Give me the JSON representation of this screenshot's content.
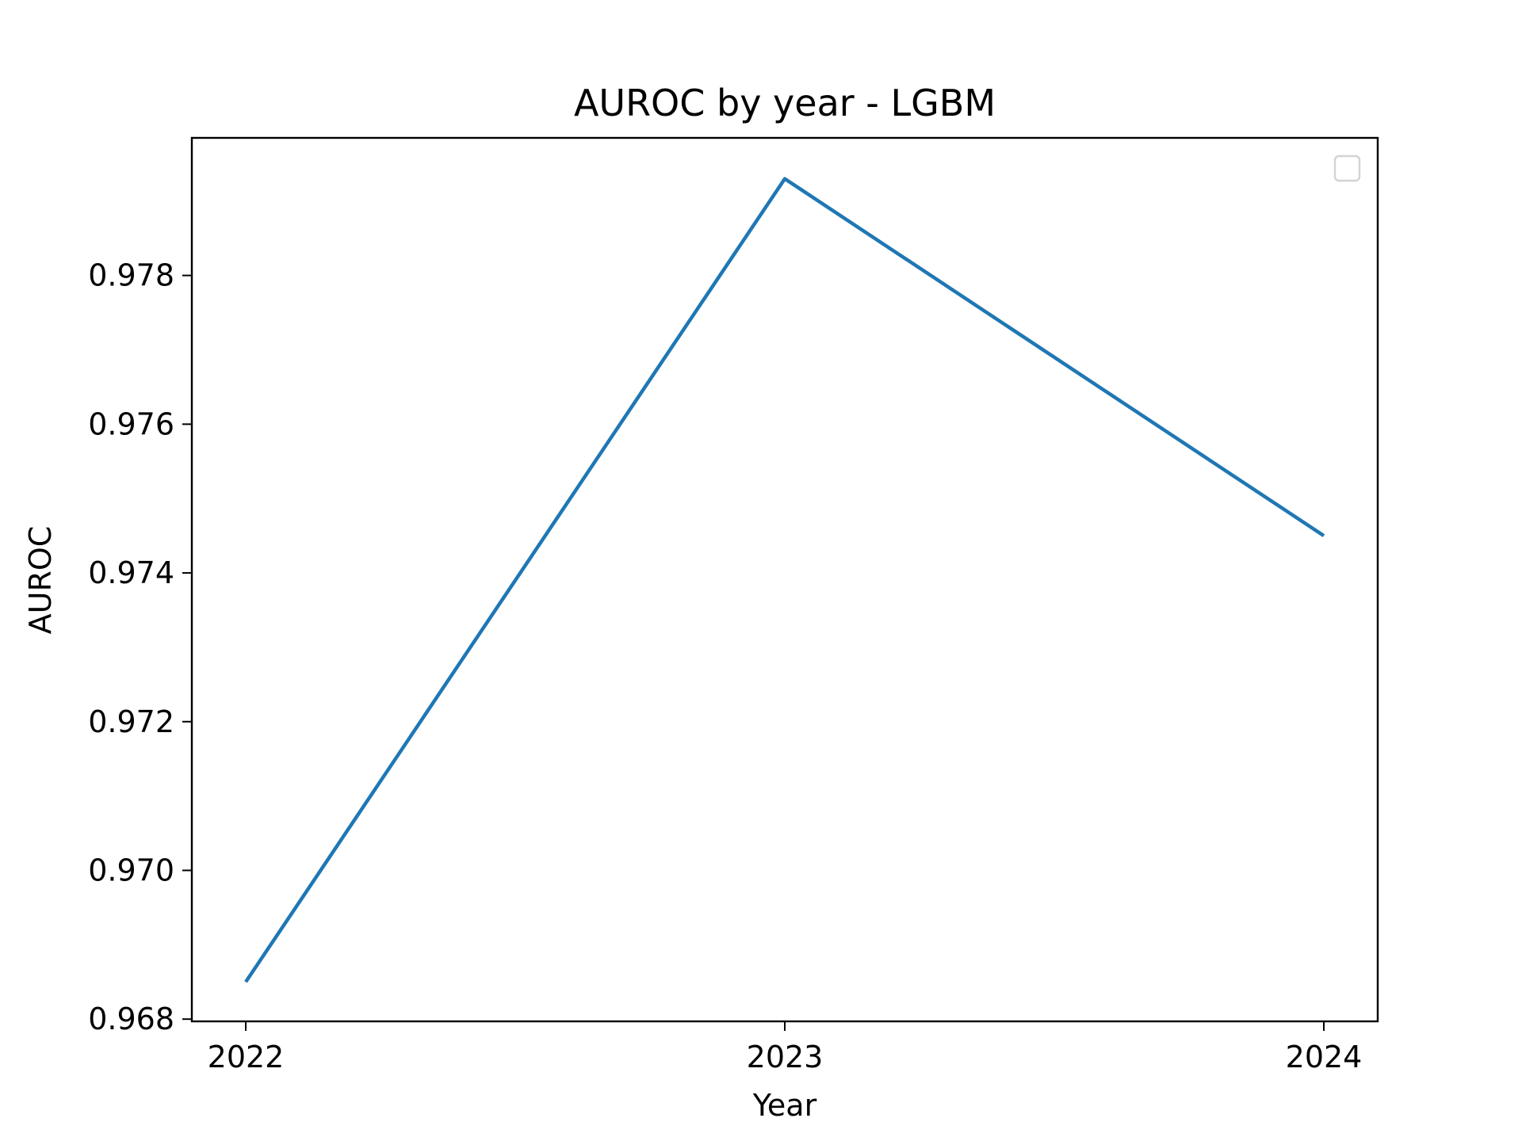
{
  "chart_data": {
    "type": "line",
    "title": "AUROC by year - LGBM",
    "xlabel": "Year",
    "ylabel": "AUROC",
    "x": [
      2022,
      2023,
      2024
    ],
    "x_tick_labels": [
      "2022",
      "2023",
      "2024"
    ],
    "xlim": [
      2021.9,
      2024.1
    ],
    "ylim": [
      0.96797,
      0.97985
    ],
    "y_ticks": [
      0.968,
      0.97,
      0.972,
      0.974,
      0.976,
      0.978
    ],
    "y_tick_labels": [
      "0.968",
      "0.970",
      "0.972",
      "0.974",
      "0.976",
      "0.978"
    ],
    "series": [
      {
        "values": [
          0.9685,
          0.9793,
          0.9745
        ],
        "color": "#1f77b4"
      }
    ],
    "grid": false,
    "legend": {
      "placement": "top-right",
      "entries": []
    }
  }
}
